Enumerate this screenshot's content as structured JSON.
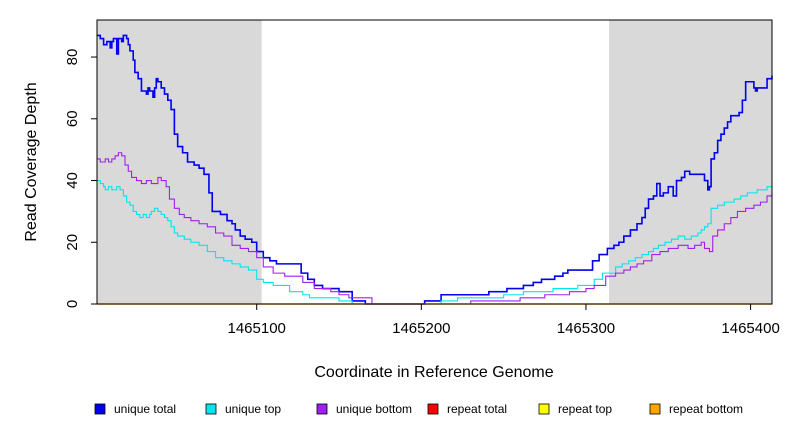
{
  "chart_data": {
    "type": "line",
    "title": "",
    "xlabel": "Coordinate in Reference Genome",
    "ylabel": "Read Coverage Depth",
    "xlim": [
      1465003,
      1465413
    ],
    "ylim": [
      0,
      92
    ],
    "x_ticks": [
      1465100,
      1465200,
      1465300,
      1465400
    ],
    "x_tick_labels": [
      "1465100",
      "1465200",
      "1465300",
      "1465400"
    ],
    "y_ticks": [
      0,
      20,
      40,
      60,
      80
    ],
    "y_tick_labels": [
      "0",
      "20",
      "40",
      "60",
      "80"
    ],
    "shaded_regions": [
      {
        "x0": 1465003,
        "x1": 1465103,
        "color": "#d9d9d9"
      },
      {
        "x0": 1465314,
        "x1": 1465413,
        "color": "#d9d9d9"
      }
    ],
    "grid": false,
    "legend_position": "bottom",
    "series": [
      {
        "name": "unique total",
        "color": "#0000ee",
        "width": 1.6,
        "points": [
          [
            1465003,
            87
          ],
          [
            1465005,
            86
          ],
          [
            1465007,
            84
          ],
          [
            1465009,
            85
          ],
          [
            1465011,
            83
          ],
          [
            1465012,
            85
          ],
          [
            1465013,
            86
          ],
          [
            1465015,
            81
          ],
          [
            1465016,
            86
          ],
          [
            1465018,
            85
          ],
          [
            1465019,
            87
          ],
          [
            1465021,
            86
          ],
          [
            1465022,
            84
          ],
          [
            1465023,
            82
          ],
          [
            1465025,
            79
          ],
          [
            1465026,
            75
          ],
          [
            1465028,
            73
          ],
          [
            1465030,
            69
          ],
          [
            1465033,
            68
          ],
          [
            1465034,
            70
          ],
          [
            1465035,
            69
          ],
          [
            1465037,
            67
          ],
          [
            1465038,
            70
          ],
          [
            1465039,
            73
          ],
          [
            1465040,
            72
          ],
          [
            1465042,
            70
          ],
          [
            1465044,
            68
          ],
          [
            1465046,
            66
          ],
          [
            1465048,
            63
          ],
          [
            1465050,
            55
          ],
          [
            1465052,
            51
          ],
          [
            1465055,
            49
          ],
          [
            1465058,
            46
          ],
          [
            1465062,
            45
          ],
          [
            1465065,
            44
          ],
          [
            1465068,
            42
          ],
          [
            1465071,
            36
          ],
          [
            1465073,
            30
          ],
          [
            1465078,
            29
          ],
          [
            1465082,
            27
          ],
          [
            1465085,
            26
          ],
          [
            1465087,
            24
          ],
          [
            1465090,
            22
          ],
          [
            1465093,
            21
          ],
          [
            1465097,
            20
          ],
          [
            1465100,
            17
          ],
          [
            1465104,
            15
          ],
          [
            1465108,
            14
          ],
          [
            1465112,
            13
          ],
          [
            1465127,
            10
          ],
          [
            1465131,
            8
          ],
          [
            1465135,
            6
          ],
          [
            1465140,
            5
          ],
          [
            1465150,
            4
          ],
          [
            1465158,
            1
          ],
          [
            1465166,
            0
          ],
          [
            1465202,
            1
          ],
          [
            1465212,
            3
          ],
          [
            1465241,
            4
          ],
          [
            1465252,
            5
          ],
          [
            1465262,
            6
          ],
          [
            1465268,
            7
          ],
          [
            1465273,
            8
          ],
          [
            1465281,
            9
          ],
          [
            1465286,
            10
          ],
          [
            1465289,
            11
          ],
          [
            1465304,
            14
          ],
          [
            1465308,
            16
          ],
          [
            1465313,
            18
          ],
          [
            1465317,
            19
          ],
          [
            1465320,
            20
          ],
          [
            1465323,
            22
          ],
          [
            1465327,
            24
          ],
          [
            1465331,
            26
          ],
          [
            1465334,
            28
          ],
          [
            1465336,
            31
          ],
          [
            1465338,
            34
          ],
          [
            1465341,
            35
          ],
          [
            1465343,
            39
          ],
          [
            1465345,
            35
          ],
          [
            1465347,
            36
          ],
          [
            1465350,
            38
          ],
          [
            1465353,
            35
          ],
          [
            1465355,
            40
          ],
          [
            1465358,
            41
          ],
          [
            1465360,
            43
          ],
          [
            1465363,
            42
          ],
          [
            1465372,
            40
          ],
          [
            1465374,
            37
          ],
          [
            1465375,
            38
          ],
          [
            1465376,
            47
          ],
          [
            1465378,
            49
          ],
          [
            1465380,
            53
          ],
          [
            1465382,
            55
          ],
          [
            1465384,
            57
          ],
          [
            1465386,
            59
          ],
          [
            1465388,
            61
          ],
          [
            1465393,
            62
          ],
          [
            1465395,
            66
          ],
          [
            1465397,
            72
          ],
          [
            1465402,
            70
          ],
          [
            1465403,
            69
          ],
          [
            1465404,
            70
          ],
          [
            1465410,
            73
          ],
          [
            1465413,
            74
          ]
        ]
      },
      {
        "name": "unique top",
        "color": "#00e5ee",
        "width": 1.1,
        "points": [
          [
            1465003,
            40
          ],
          [
            1465005,
            39
          ],
          [
            1465007,
            38
          ],
          [
            1465008,
            37
          ],
          [
            1465010,
            38
          ],
          [
            1465012,
            37
          ],
          [
            1465015,
            38
          ],
          [
            1465017,
            37
          ],
          [
            1465019,
            35
          ],
          [
            1465021,
            33
          ],
          [
            1465023,
            32
          ],
          [
            1465025,
            30
          ],
          [
            1465027,
            29
          ],
          [
            1465029,
            28
          ],
          [
            1465031,
            29
          ],
          [
            1465033,
            28
          ],
          [
            1465035,
            29
          ],
          [
            1465036,
            30
          ],
          [
            1465038,
            31
          ],
          [
            1465040,
            30
          ],
          [
            1465042,
            29
          ],
          [
            1465044,
            28
          ],
          [
            1465046,
            27
          ],
          [
            1465048,
            25
          ],
          [
            1465050,
            23
          ],
          [
            1465052,
            22
          ],
          [
            1465056,
            21
          ],
          [
            1465060,
            20
          ],
          [
            1465065,
            19
          ],
          [
            1465070,
            17
          ],
          [
            1465075,
            15
          ],
          [
            1465080,
            14
          ],
          [
            1465085,
            13
          ],
          [
            1465090,
            12
          ],
          [
            1465095,
            11
          ],
          [
            1465100,
            8
          ],
          [
            1465104,
            7
          ],
          [
            1465110,
            6
          ],
          [
            1465120,
            4
          ],
          [
            1465128,
            3
          ],
          [
            1465132,
            2
          ],
          [
            1465150,
            1
          ],
          [
            1465158,
            0
          ],
          [
            1465212,
            1
          ],
          [
            1465222,
            2
          ],
          [
            1465250,
            3
          ],
          [
            1465262,
            4
          ],
          [
            1465280,
            5
          ],
          [
            1465295,
            6
          ],
          [
            1465305,
            8
          ],
          [
            1465310,
            10
          ],
          [
            1465318,
            12
          ],
          [
            1465322,
            13
          ],
          [
            1465326,
            14
          ],
          [
            1465330,
            15
          ],
          [
            1465334,
            16
          ],
          [
            1465338,
            17
          ],
          [
            1465341,
            18
          ],
          [
            1465344,
            19
          ],
          [
            1465348,
            20
          ],
          [
            1465352,
            21
          ],
          [
            1465356,
            22
          ],
          [
            1465360,
            21
          ],
          [
            1465364,
            22
          ],
          [
            1465368,
            23
          ],
          [
            1465370,
            24
          ],
          [
            1465372,
            25
          ],
          [
            1465374,
            26
          ],
          [
            1465376,
            31
          ],
          [
            1465380,
            32
          ],
          [
            1465384,
            33
          ],
          [
            1465390,
            34
          ],
          [
            1465394,
            35
          ],
          [
            1465398,
            36
          ],
          [
            1465404,
            37
          ],
          [
            1465410,
            38
          ],
          [
            1465413,
            38
          ]
        ]
      },
      {
        "name": "unique bottom",
        "color": "#a020f0",
        "width": 1.1,
        "points": [
          [
            1465003,
            47
          ],
          [
            1465005,
            46
          ],
          [
            1465008,
            47
          ],
          [
            1465010,
            46
          ],
          [
            1465012,
            47
          ],
          [
            1465014,
            48
          ],
          [
            1465016,
            49
          ],
          [
            1465018,
            48
          ],
          [
            1465020,
            45
          ],
          [
            1465022,
            43
          ],
          [
            1465024,
            41
          ],
          [
            1465027,
            40
          ],
          [
            1465030,
            39
          ],
          [
            1465033,
            40
          ],
          [
            1465036,
            39
          ],
          [
            1465040,
            41
          ],
          [
            1465042,
            40
          ],
          [
            1465045,
            38
          ],
          [
            1465047,
            34
          ],
          [
            1465050,
            31
          ],
          [
            1465053,
            29
          ],
          [
            1465056,
            28
          ],
          [
            1465060,
            27
          ],
          [
            1465065,
            26
          ],
          [
            1465070,
            25
          ],
          [
            1465075,
            23
          ],
          [
            1465080,
            22
          ],
          [
            1465085,
            19
          ],
          [
            1465090,
            18
          ],
          [
            1465095,
            17
          ],
          [
            1465100,
            15
          ],
          [
            1465104,
            12
          ],
          [
            1465110,
            10
          ],
          [
            1465117,
            9
          ],
          [
            1465128,
            7
          ],
          [
            1465135,
            5
          ],
          [
            1465145,
            4
          ],
          [
            1465150,
            3
          ],
          [
            1465156,
            2
          ],
          [
            1465170,
            0
          ],
          [
            1465230,
            1
          ],
          [
            1465260,
            2
          ],
          [
            1465275,
            3
          ],
          [
            1465290,
            4
          ],
          [
            1465300,
            5
          ],
          [
            1465305,
            6
          ],
          [
            1465312,
            9
          ],
          [
            1465318,
            10
          ],
          [
            1465323,
            11
          ],
          [
            1465327,
            12
          ],
          [
            1465331,
            13
          ],
          [
            1465335,
            14
          ],
          [
            1465340,
            16
          ],
          [
            1465345,
            17
          ],
          [
            1465350,
            18
          ],
          [
            1465356,
            19
          ],
          [
            1465362,
            18
          ],
          [
            1465366,
            19
          ],
          [
            1465370,
            20
          ],
          [
            1465372,
            18
          ],
          [
            1465375,
            17
          ],
          [
            1465377,
            22
          ],
          [
            1465380,
            24
          ],
          [
            1465384,
            26
          ],
          [
            1465388,
            28
          ],
          [
            1465392,
            30
          ],
          [
            1465397,
            31
          ],
          [
            1465402,
            32
          ],
          [
            1465406,
            33
          ],
          [
            1465410,
            35
          ],
          [
            1465413,
            36
          ]
        ]
      },
      {
        "name": "repeat total",
        "color": "#ff0000",
        "width": 1.0,
        "points": [
          [
            1465003,
            0
          ],
          [
            1465413,
            0
          ]
        ]
      },
      {
        "name": "repeat top",
        "color": "#ffff00",
        "width": 1.0,
        "points": [
          [
            1465003,
            0
          ],
          [
            1465413,
            0
          ]
        ]
      },
      {
        "name": "repeat bottom",
        "color": "#ffa500",
        "width": 1.4,
        "points": [
          [
            1465003,
            0
          ],
          [
            1465413,
            0
          ]
        ]
      }
    ]
  }
}
